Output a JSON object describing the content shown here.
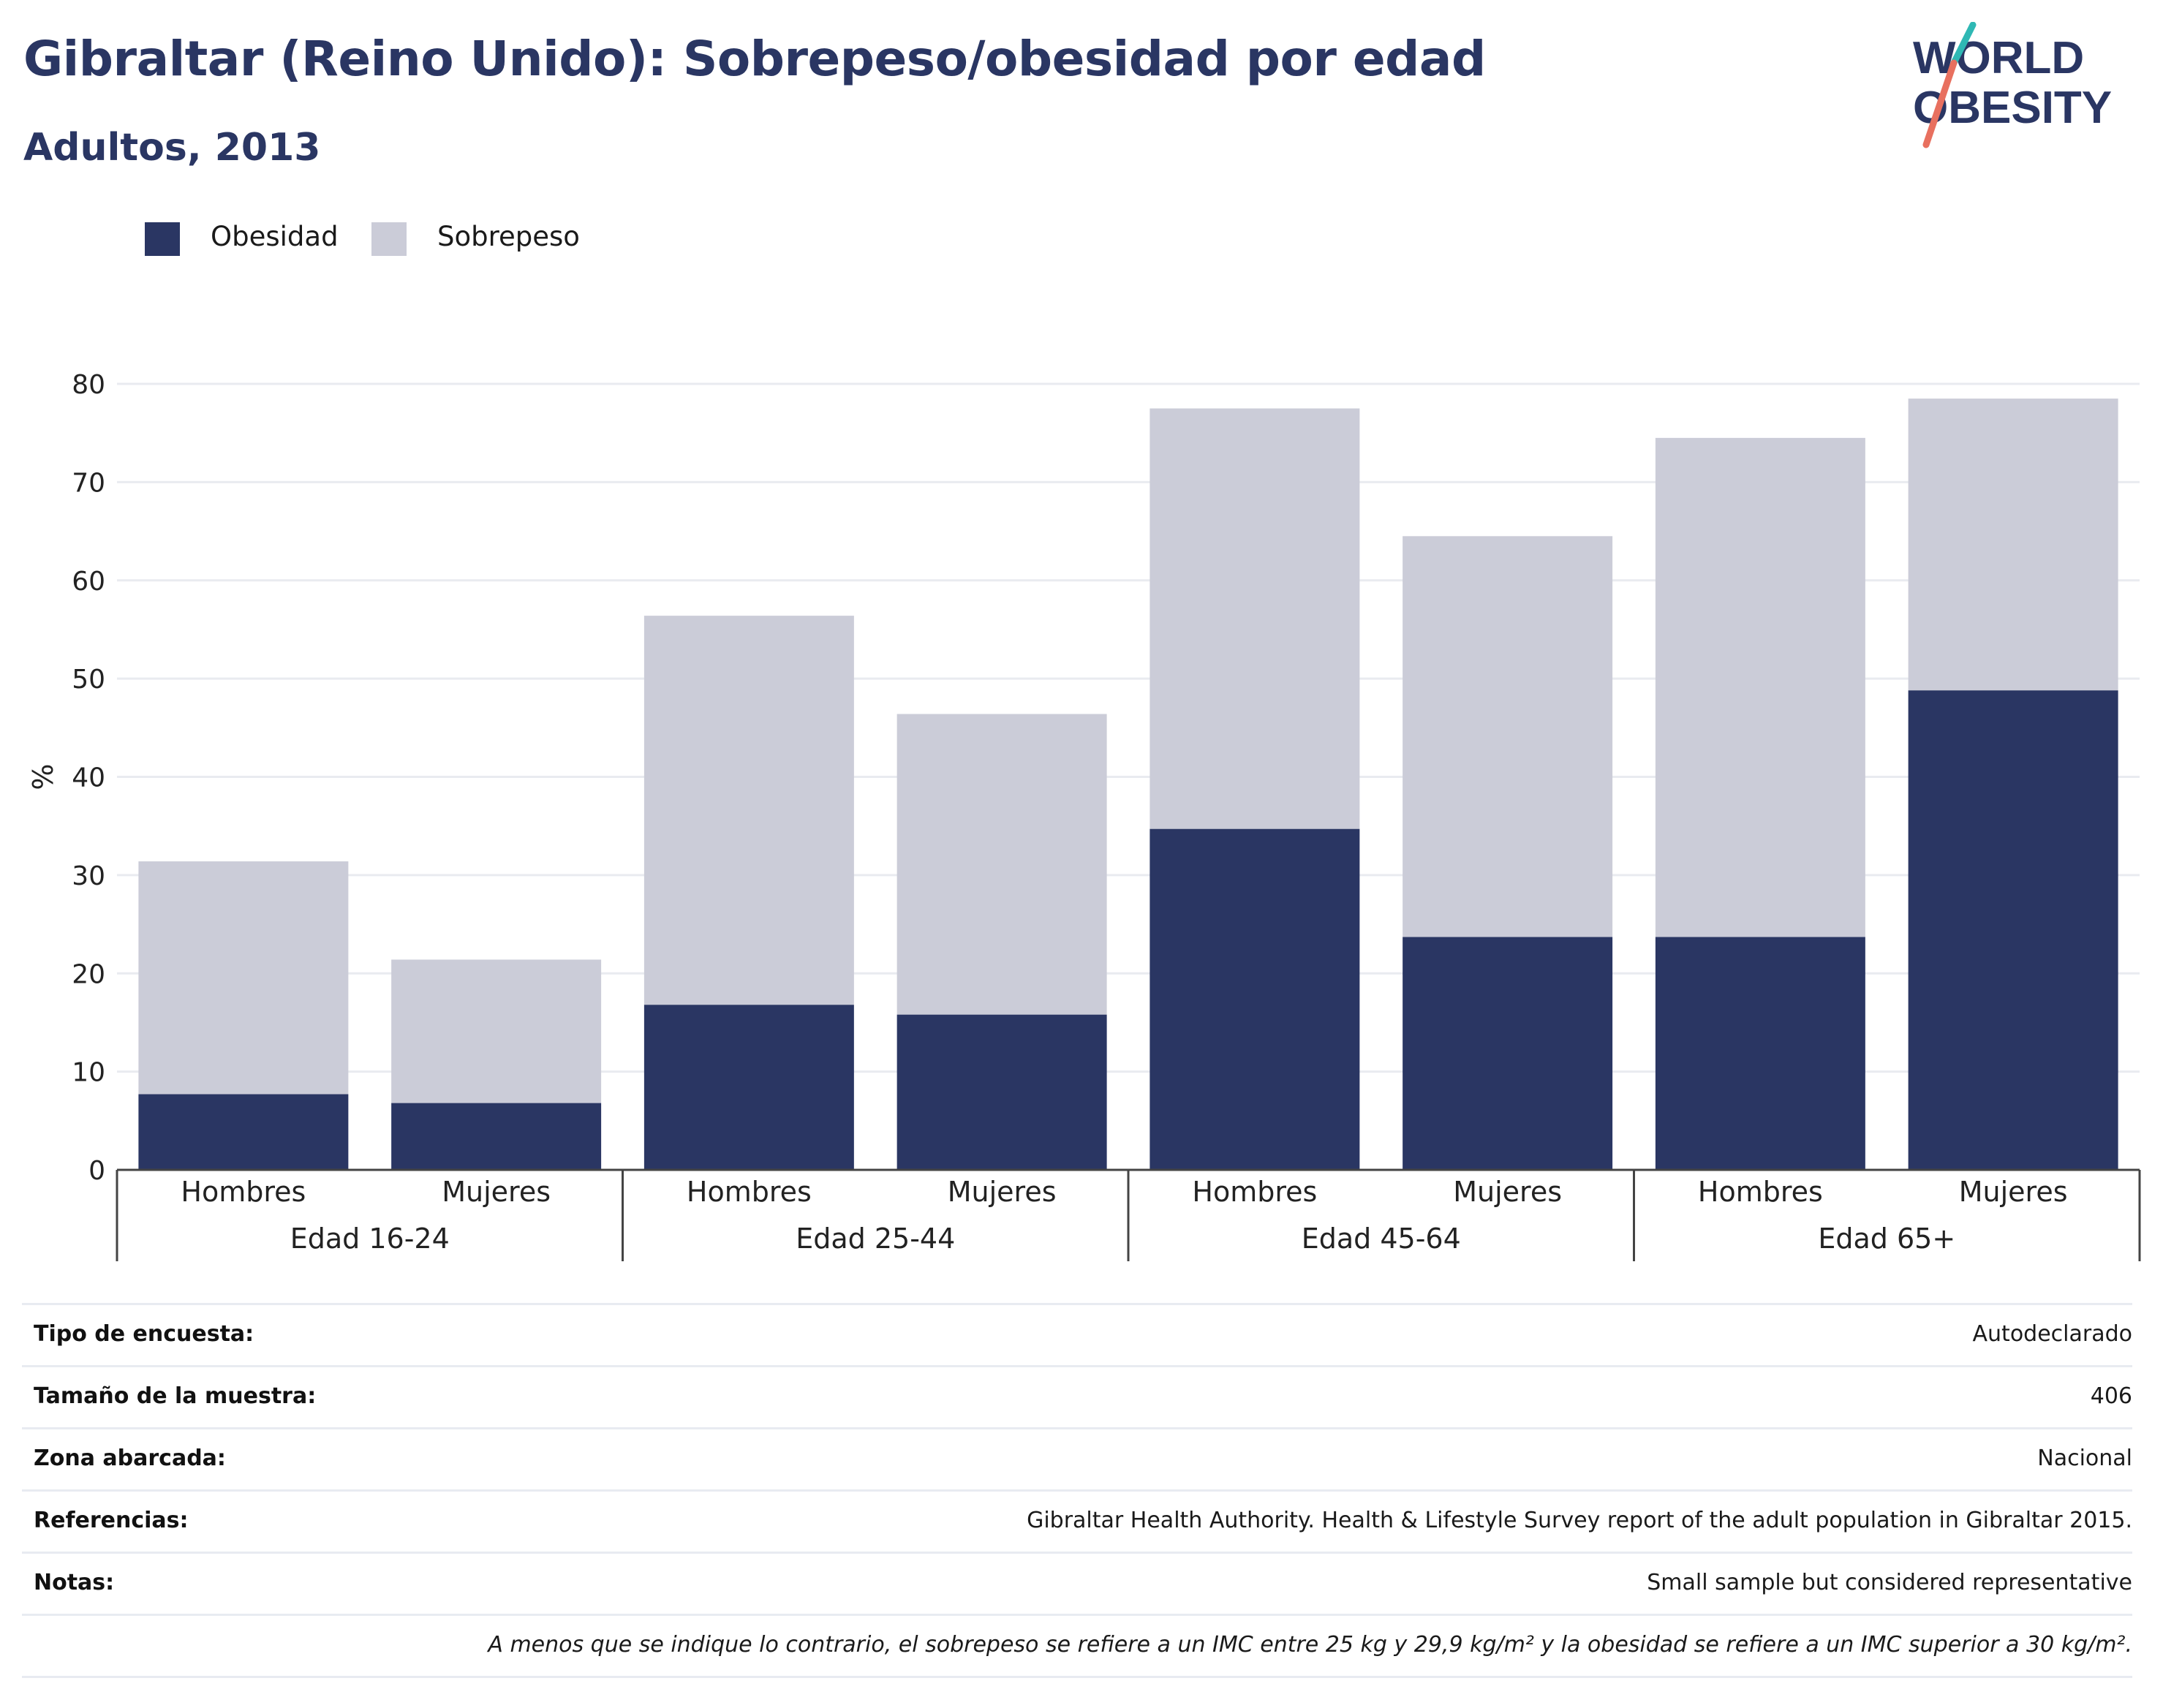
{
  "title": "Gibraltar (Reino Unido): Sobrepeso/obesidad por edad",
  "subtitle": "Adultos, 2013",
  "logo": {
    "line1": "WORLD",
    "line2": "OBESITY"
  },
  "colors": {
    "obesity": "#2a3663",
    "overweight": "#cbccd8",
    "text": "#2a3663"
  },
  "legend": [
    {
      "label": "Obesidad",
      "color": "#2a3663"
    },
    {
      "label": "Sobrepeso",
      "color": "#cbccd8"
    }
  ],
  "chart_data": {
    "type": "bar",
    "stacked": true,
    "ylabel": "%",
    "ylim": [
      0,
      80
    ],
    "yticks": [
      0,
      10,
      20,
      30,
      40,
      50,
      60,
      70,
      80
    ],
    "grid": true,
    "legend_position": "top-left",
    "groups": [
      "Edad 16-24",
      "Edad 25-44",
      "Edad 45-64",
      "Edad 65+"
    ],
    "categories": [
      "Hombres",
      "Mujeres",
      "Hombres",
      "Mujeres",
      "Hombres",
      "Mujeres",
      "Hombres",
      "Mujeres"
    ],
    "series": [
      {
        "name": "Obesidad",
        "values": [
          7.7,
          6.8,
          16.8,
          15.8,
          34.7,
          23.7,
          23.7,
          48.8
        ]
      },
      {
        "name": "Sobrepeso",
        "values": [
          23.7,
          14.6,
          39.6,
          30.6,
          42.8,
          40.8,
          50.8,
          29.7
        ]
      }
    ]
  },
  "info": [
    {
      "key": "Tipo de encuesta:",
      "value": "Autodeclarado"
    },
    {
      "key": "Tamaño de la muestra:",
      "value": "406"
    },
    {
      "key": "Zona abarcada:",
      "value": "Nacional"
    },
    {
      "key": "Referencias:",
      "value": "Gibraltar Health Authority. Health & Lifestyle Survey report of the adult population in Gibraltar 2015."
    },
    {
      "key": "Notas:",
      "value": "Small sample but considered representative"
    }
  ],
  "footnote": "A menos que se indique lo contrario, el sobrepeso se refiere a un IMC entre 25 kg y 29,9 kg/m² y la obesidad se refiere a un IMC superior a 30 kg/m²."
}
